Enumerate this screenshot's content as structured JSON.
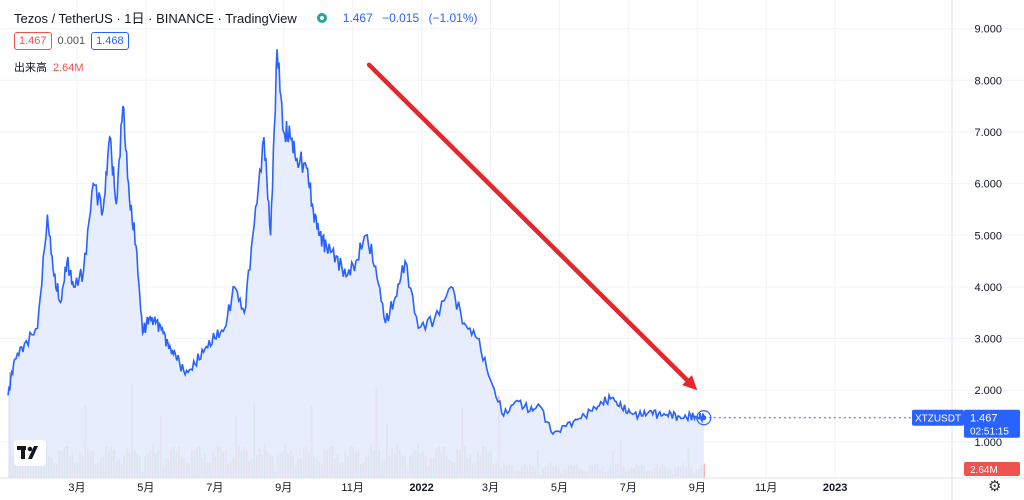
{
  "header": {
    "symbol": "Tezos / TetherUS · 1日 · BINANCE · TradingView",
    "last": "1.467",
    "change": "−0.015",
    "change_pct": "(−1.01%)"
  },
  "bidask": {
    "bid": "1.467",
    "spread": "0.001",
    "ask": "1.468"
  },
  "volume": {
    "label": "出来高",
    "value": "2.64M"
  },
  "colors": {
    "line": "#2962ff",
    "area": "#e3eafc",
    "arrow": "#e6262b",
    "vol_up": "#a5d6a7",
    "vol_down": "#f6b3b3",
    "price_tag": "#2962ff",
    "vol_tag": "#ef5350"
  },
  "icons": {
    "logo": "tradingview-logo-icon",
    "status": "market-status-dot-icon",
    "settings": "gear-icon"
  },
  "chart_data": {
    "type": "area",
    "ylim": [
      0.3,
      9.4
    ],
    "yticks": [
      1.0,
      2.0,
      3.0,
      4.0,
      5.0,
      6.0,
      7.0,
      8.0,
      9.0
    ],
    "ytick_labels": [
      "1.000",
      "2.000",
      "3.000",
      "4.000",
      "5.000",
      "6.000",
      "7.000",
      "8.000",
      "9.000"
    ],
    "xlim": [
      0,
      2.87
    ],
    "xtick_positions": [
      0.21,
      0.42,
      0.63,
      0.84,
      1.05,
      1.26,
      1.47,
      1.68,
      1.89,
      2.1,
      2.31,
      2.52
    ],
    "xtick_labels": [
      "3月",
      "5月",
      "7月",
      "9月",
      "11月",
      "2022",
      "3月",
      "5月",
      "7月",
      "9月",
      "11月",
      "2023"
    ],
    "series": [
      {
        "x": [
          0.0,
          0.02,
          0.05,
          0.09,
          0.12,
          0.14,
          0.16,
          0.18,
          0.2,
          0.23,
          0.26,
          0.29,
          0.31,
          0.33,
          0.35,
          0.37,
          0.39,
          0.41,
          0.43,
          0.45,
          0.47,
          0.49,
          0.51,
          0.54,
          0.57,
          0.6,
          0.63,
          0.66,
          0.69,
          0.72,
          0.75,
          0.78,
          0.8,
          0.82,
          0.84,
          0.86,
          0.88,
          0.91,
          0.93,
          0.95,
          0.97,
          1.0,
          1.03,
          1.06,
          1.09,
          1.12,
          1.15,
          1.18,
          1.21,
          1.25,
          1.3,
          1.35,
          1.39,
          1.43,
          1.47,
          1.51,
          1.55,
          1.59,
          1.62,
          1.66,
          1.7,
          1.74,
          1.78,
          1.81,
          1.84,
          1.87,
          1.9,
          1.93,
          1.96,
          1.99,
          2.02,
          2.05,
          2.08,
          2.1,
          2.12
        ],
        "y": [
          1.9,
          2.6,
          2.9,
          3.2,
          5.4,
          4.2,
          3.7,
          4.5,
          4.0,
          4.3,
          6.0,
          5.5,
          6.9,
          5.6,
          7.5,
          5.7,
          4.8,
          3.1,
          3.4,
          3.3,
          3.2,
          2.8,
          2.7,
          2.3,
          2.5,
          2.8,
          3.0,
          3.2,
          4.0,
          3.5,
          5.2,
          6.9,
          5.0,
          8.6,
          7.0,
          6.9,
          6.5,
          6.3,
          5.5,
          5.0,
          4.8,
          4.6,
          4.2,
          4.5,
          5.0,
          4.4,
          3.3,
          3.8,
          4.5,
          3.2,
          3.4,
          4.0,
          3.3,
          3.0,
          2.2,
          1.5,
          1.8,
          1.6,
          1.7,
          1.15,
          1.3,
          1.45,
          1.6,
          1.75,
          1.85,
          1.65,
          1.55,
          1.5,
          1.6,
          1.5,
          1.55,
          1.45,
          1.5,
          1.48,
          1.467
        ]
      }
    ],
    "annotation": {
      "type": "arrow",
      "from": {
        "x": 1.1,
        "y": 8.3
      },
      "to": {
        "x": 2.1,
        "y": 2.0
      }
    },
    "last_price_label": "1.467",
    "symbol_tag": "XTZUSDT",
    "countdown": "02:51:15",
    "volume_tag": "2.64M"
  }
}
